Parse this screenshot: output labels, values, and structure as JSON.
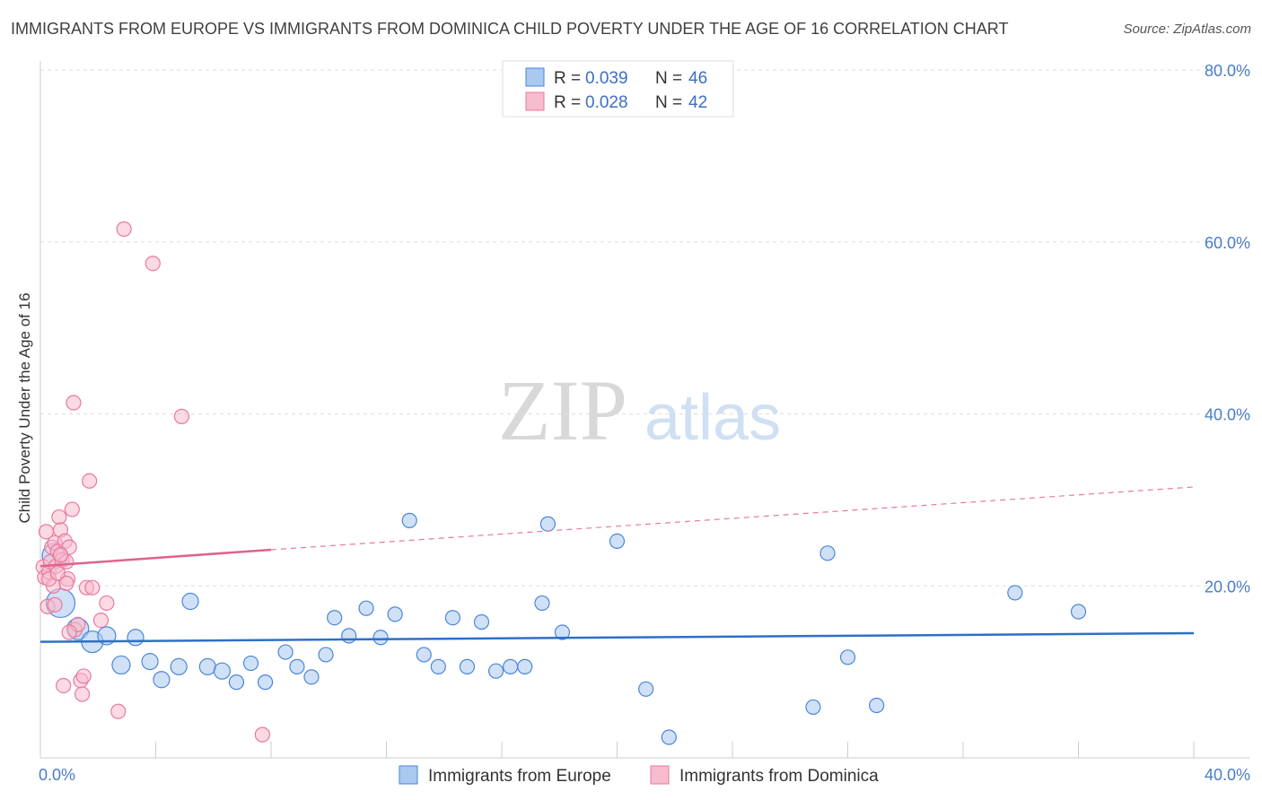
{
  "title": "IMMIGRANTS FROM EUROPE VS IMMIGRANTS FROM DOMINICA CHILD POVERTY UNDER THE AGE OF 16 CORRELATION CHART",
  "source": "Source: ZipAtlas.com",
  "watermark": {
    "zip": "ZIP",
    "atlas": "atlas"
  },
  "colors": {
    "europe": "#4a86d8",
    "europe_fill": "#aac8f0",
    "europe_line": "#2f6fc8",
    "dominica": "#e8799c",
    "dominica_fill": "#f7bccd",
    "dominica_line": "#e0628d",
    "tick": "#4a7cc9",
    "grid": "#dddddd"
  },
  "stats_legend": [
    {
      "r_label": "R =",
      "r_value": "0.039",
      "n_label": "N =",
      "n_value": "46",
      "series": "europe"
    },
    {
      "r_label": "R =",
      "r_value": "0.028",
      "n_label": "N =",
      "n_value": "42",
      "series": "dominica"
    }
  ],
  "chart_data": {
    "type": "scatter",
    "title": "IMMIGRANTS FROM EUROPE VS IMMIGRANTS FROM DOMINICA CHILD POVERTY UNDER THE AGE OF 16 CORRELATION CHART",
    "xlabel": "",
    "ylabel": "Child Poverty Under the Age of 16",
    "xlim": [
      0,
      40
    ],
    "ylim": [
      0,
      80
    ],
    "x_tick_labels": [
      "0.0%",
      "40.0%"
    ],
    "y_ticks": [
      20,
      40,
      60,
      80
    ],
    "y_tick_labels": [
      "20.0%",
      "40.0%",
      "60.0%",
      "80.0%"
    ],
    "legend_position": "bottom-center",
    "series": [
      {
        "name": "Immigrants from Europe",
        "color_key": "europe",
        "points": [
          [
            0.5,
            23.5,
            14
          ],
          [
            0.7,
            18.0,
            16
          ],
          [
            1.3,
            15.0,
            12
          ],
          [
            1.8,
            13.5,
            12
          ],
          [
            2.3,
            14.2,
            10
          ],
          [
            2.8,
            10.8,
            10
          ],
          [
            3.3,
            14.0,
            9
          ],
          [
            3.8,
            11.2,
            9
          ],
          [
            4.2,
            9.1,
            9
          ],
          [
            4.8,
            10.6,
            9
          ],
          [
            5.2,
            18.2,
            9
          ],
          [
            5.8,
            10.6,
            9
          ],
          [
            6.3,
            10.1,
            9
          ],
          [
            6.8,
            8.8,
            8
          ],
          [
            7.3,
            11.0,
            8
          ],
          [
            7.8,
            8.8,
            8
          ],
          [
            8.5,
            12.3,
            8
          ],
          [
            8.9,
            10.6,
            8
          ],
          [
            9.4,
            9.4,
            8
          ],
          [
            9.9,
            12.0,
            8
          ],
          [
            10.2,
            16.3,
            8
          ],
          [
            10.7,
            14.2,
            8
          ],
          [
            11.3,
            17.4,
            8
          ],
          [
            11.8,
            14.0,
            8
          ],
          [
            12.3,
            16.7,
            8
          ],
          [
            12.8,
            27.6,
            8
          ],
          [
            13.3,
            12.0,
            8
          ],
          [
            13.8,
            10.6,
            8
          ],
          [
            14.3,
            16.3,
            8
          ],
          [
            14.8,
            10.6,
            8
          ],
          [
            15.3,
            15.8,
            8
          ],
          [
            15.8,
            10.1,
            8
          ],
          [
            16.3,
            10.6,
            8
          ],
          [
            16.8,
            10.6,
            8
          ],
          [
            17.4,
            18.0,
            8
          ],
          [
            17.6,
            27.2,
            8
          ],
          [
            18.1,
            14.6,
            8
          ],
          [
            20.0,
            25.2,
            8
          ],
          [
            21.0,
            8.0,
            8
          ],
          [
            21.8,
            2.4,
            8
          ],
          [
            26.8,
            5.9,
            8
          ],
          [
            27.3,
            23.8,
            8
          ],
          [
            28.0,
            11.7,
            8
          ],
          [
            29.0,
            6.1,
            8
          ],
          [
            33.8,
            19.2,
            8
          ],
          [
            36.0,
            17.0,
            8
          ]
        ],
        "trend": {
          "x1": 0,
          "y1": 13.5,
          "x2": 40,
          "y2": 14.5
        }
      },
      {
        "name": "Immigrants from Dominica",
        "color_key": "dominica",
        "points": [
          [
            0.1,
            22.2,
            8
          ],
          [
            0.15,
            21.0,
            8
          ],
          [
            0.2,
            26.3,
            8
          ],
          [
            0.25,
            17.6,
            8
          ],
          [
            0.3,
            21.6,
            8
          ],
          [
            0.35,
            22.8,
            8
          ],
          [
            0.4,
            24.5,
            8
          ],
          [
            0.45,
            20.0,
            8
          ],
          [
            0.5,
            25.0,
            8
          ],
          [
            0.55,
            22.3,
            8
          ],
          [
            0.6,
            24.0,
            8
          ],
          [
            0.65,
            28.0,
            8
          ],
          [
            0.7,
            26.5,
            8
          ],
          [
            0.75,
            23.0,
            8
          ],
          [
            0.8,
            8.4,
            8
          ],
          [
            0.85,
            25.2,
            8
          ],
          [
            0.9,
            22.8,
            8
          ],
          [
            0.95,
            20.8,
            8
          ],
          [
            1.0,
            24.5,
            8
          ],
          [
            1.1,
            28.9,
            8
          ],
          [
            1.15,
            41.3,
            8
          ],
          [
            1.2,
            14.9,
            8
          ],
          [
            1.3,
            15.5,
            8
          ],
          [
            1.4,
            9.0,
            8
          ],
          [
            1.45,
            7.4,
            8
          ],
          [
            1.5,
            9.5,
            8
          ],
          [
            1.6,
            19.8,
            8
          ],
          [
            1.7,
            32.2,
            8
          ],
          [
            1.8,
            19.8,
            8
          ],
          [
            2.1,
            16.0,
            8
          ],
          [
            2.3,
            18.0,
            8
          ],
          [
            2.7,
            5.4,
            8
          ],
          [
            2.9,
            61.5,
            8
          ],
          [
            3.9,
            57.5,
            8
          ],
          [
            4.9,
            39.7,
            8
          ],
          [
            7.7,
            2.7,
            8
          ],
          [
            0.3,
            20.8,
            8
          ],
          [
            0.5,
            17.8,
            8
          ],
          [
            0.7,
            23.6,
            8
          ],
          [
            0.9,
            20.3,
            8
          ],
          [
            1.0,
            14.6,
            8
          ],
          [
            0.6,
            21.5,
            8
          ]
        ],
        "trend": {
          "x1": 0,
          "y1": 22.3,
          "x2": 8,
          "y2": 24.2
        },
        "trend_dashed": {
          "x1": 8,
          "y1": 24.2,
          "x2": 40,
          "y2": 31.5
        }
      }
    ]
  }
}
